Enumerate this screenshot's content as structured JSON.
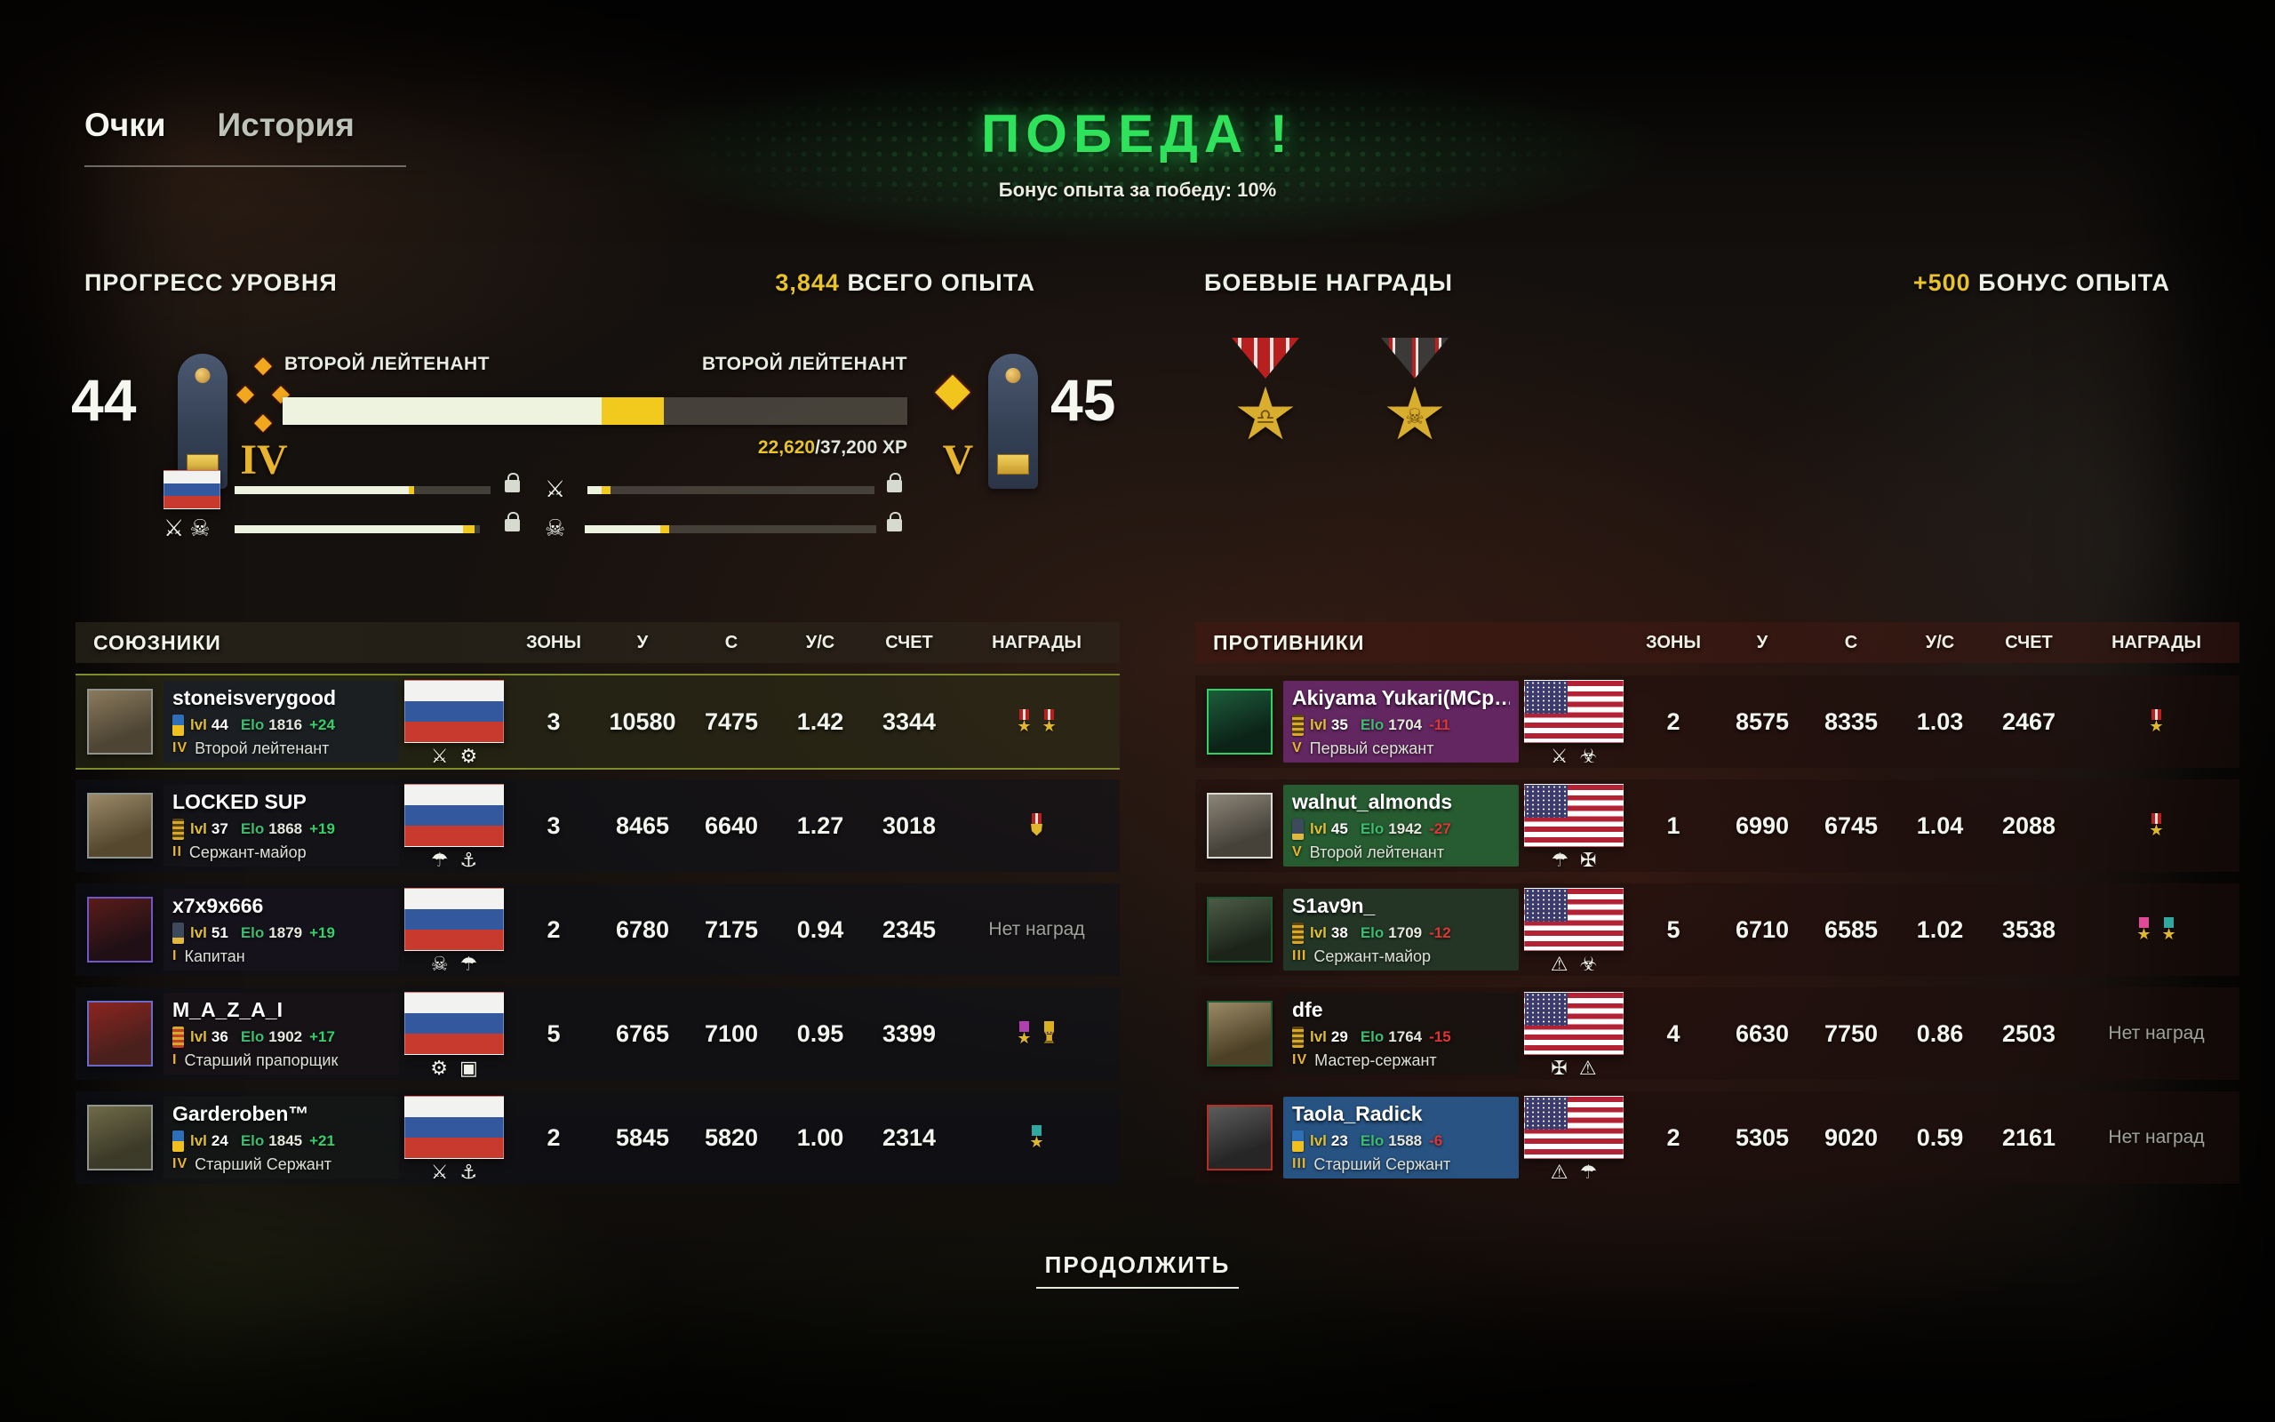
{
  "tabs": {
    "points": "Очки",
    "history": "История"
  },
  "victory": {
    "title": "ПОБЕДА !",
    "subtitle": "Бонус опыта за победу: 10%"
  },
  "progress": {
    "title": "ПРОГРЕСС УРОВНЯ",
    "total_xp_value": "3,844",
    "total_xp_label": "ВСЕГО ОПЫТА",
    "level_from": "44",
    "level_to": "45",
    "roman_from": "IV",
    "roman_to": "V",
    "rank_from": "ВТОРОЙ ЛЕЙТЕНАНТ",
    "rank_to": "ВТОРОЙ ЛЕЙТЕНАНТ",
    "xp_current": "22,620",
    "xp_total": "/37,200 XP",
    "bar_white_pct": 51,
    "bar_yellow_pct": 10,
    "sub_bars": [
      {
        "icon": "flag-ru",
        "white_pct": 68,
        "yellow_pct": 2,
        "locked": true
      },
      {
        "icon": "crossed-rifles",
        "white_pct": 5,
        "yellow_pct": 3,
        "locked": true
      },
      {
        "icon": "crossed-rifles-skull",
        "white_pct": 93,
        "yellow_pct": 5,
        "locked": true
      },
      {
        "icon": "skull",
        "white_pct": 26,
        "yellow_pct": 3,
        "locked": true
      }
    ]
  },
  "awards": {
    "title": "БОЕВЫЕ НАГРАДЫ",
    "bonus_value": "+500",
    "bonus_label": "БОНУС ОПЫТА",
    "medals": [
      {
        "name": "gold-star-scales",
        "ribbon": "red",
        "inner": "scales"
      },
      {
        "name": "gold-star-skull",
        "ribbon": "dark",
        "inner": "skull"
      }
    ]
  },
  "table": {
    "columns": [
      "ЗОНЫ",
      "У",
      "С",
      "У/С",
      "СЧЕТ",
      "НАГРАДЫ"
    ],
    "no_awards": "Нет наград"
  },
  "allies": {
    "title": "СОЮЗНИКИ",
    "rows": [
      {
        "name": "stoneisverygood",
        "lvl": "44",
        "elo": "1816",
        "delta": "+24",
        "roman": "IV",
        "rank": "Второй лейтенант",
        "flag": "ru",
        "badge": "ua",
        "unit_icons": [
          "crossed-rifles",
          "vehicle"
        ],
        "zones": "3",
        "u": "10580",
        "c": "7475",
        "uc": "1.42",
        "score": "3344",
        "awards": [
          "star-red",
          "star-red"
        ],
        "highlight": true,
        "banner": "rgba(22,30,48,0.55)",
        "avatar": "linear-gradient(160deg,#8a7a5c,#4d4434 70%)",
        "avatar_border": "#8f948e"
      },
      {
        "name": "LOCKED SUP",
        "lvl": "37",
        "elo": "1868",
        "delta": "+19",
        "roman": "II",
        "rank": "Сержант-майор",
        "flag": "ru",
        "badge": "sergeant",
        "unit_icons": [
          "parachute",
          "anchor"
        ],
        "zones": "3",
        "u": "8465",
        "c": "6640",
        "uc": "1.27",
        "score": "3018",
        "awards": [
          "medal-red"
        ],
        "highlight": false,
        "banner": "rgba(24,24,28,0.45)",
        "avatar": "linear-gradient(160deg,#9a8a68,#55482f 70%)",
        "avatar_border": "#8f948e"
      },
      {
        "name": "x7x9x666",
        "lvl": "51",
        "elo": "1879",
        "delta": "+19",
        "roman": "I",
        "rank": "Капитан",
        "flag": "ru",
        "badge": "officer",
        "unit_icons": [
          "skull",
          "parachute"
        ],
        "zones": "2",
        "u": "6780",
        "c": "7175",
        "uc": "0.94",
        "score": "2345",
        "awards": [],
        "highlight": false,
        "banner": "rgba(26,20,34,0.5)",
        "avatar": "linear-gradient(160deg,#5a1c18,#201016 70%)",
        "avatar_border": "#6f57c8"
      },
      {
        "name": "M_A_Z_A_I",
        "lvl": "36",
        "elo": "1902",
        "delta": "+17",
        "roman": "I",
        "rank": "Старший прапорщик",
        "flag": "ru",
        "badge": "stripes",
        "unit_icons": [
          "vehicle",
          "apc"
        ],
        "zones": "5",
        "u": "6765",
        "c": "7100",
        "uc": "0.95",
        "score": "3399",
        "awards": [
          "star-purple",
          "cup-gold"
        ],
        "highlight": false,
        "banner": "rgba(30,20,24,0.5)",
        "avatar": "linear-gradient(160deg,#8c2420,#4a201c 70%)",
        "avatar_border": "#6a6ac8"
      },
      {
        "name": "Garderoben™",
        "lvl": "24",
        "elo": "1845",
        "delta": "+21",
        "roman": "IV",
        "rank": "Старший Сержант",
        "flag": "ru",
        "badge": "ua",
        "unit_icons": [
          "crossed-rifles",
          "anchor"
        ],
        "zones": "2",
        "u": "5845",
        "c": "5820",
        "uc": "1.00",
        "score": "2314",
        "awards": [
          "star-teal"
        ],
        "highlight": false,
        "banner": "rgba(24,28,24,0.45)",
        "avatar": "linear-gradient(160deg,#6e6a48,#3c3a28 70%)",
        "avatar_border": "#8f948e"
      }
    ]
  },
  "opponents": {
    "title": "ПРОТИВНИКИ",
    "rows": [
      {
        "name": "Akiyama Yukari(MCp…",
        "lvl": "35",
        "elo": "1704",
        "delta": "-11",
        "roman": "V",
        "rank": "Первый сержант",
        "flag": "us",
        "badge": "sergeant",
        "unit_icons": [
          "crossed-swords",
          "frog"
        ],
        "zones": "2",
        "u": "8575",
        "c": "8335",
        "uc": "1.03",
        "score": "2467",
        "awards": [
          "star-red"
        ],
        "highlight": false,
        "banner": "rgba(115,44,118,0.8)",
        "avatar": "linear-gradient(160deg,#1d5c3a,#0c2418 70%)",
        "avatar_border": "#2bd468"
      },
      {
        "name": "walnut_almonds",
        "lvl": "45",
        "elo": "1942",
        "delta": "-27",
        "roman": "V",
        "rank": "Второй лейтенант",
        "flag": "us",
        "badge": "officer",
        "unit_icons": [
          "parachute",
          "usmc"
        ],
        "zones": "1",
        "u": "6990",
        "c": "6745",
        "uc": "1.04",
        "score": "2088",
        "awards": [
          "star-red"
        ],
        "highlight": false,
        "banner": "rgba(40,110,58,0.8)",
        "avatar": "linear-gradient(160deg,#8c8578,#46423a 70%)",
        "avatar_border": "#d8dcd4"
      },
      {
        "name": "S1av9n_",
        "lvl": "38",
        "elo": "1709",
        "delta": "-12",
        "roman": "III",
        "rank": "Сержант-майор",
        "flag": "us",
        "badge": "sergeant",
        "unit_icons": [
          "warning-triangle",
          "frog"
        ],
        "zones": "5",
        "u": "6710",
        "c": "6585",
        "uc": "1.02",
        "score": "3538",
        "awards": [
          "star-pink",
          "star-teal"
        ],
        "highlight": false,
        "banner": "rgba(36,62,44,0.8)",
        "avatar": "linear-gradient(160deg,#4c5c46,#1c241a 70%)",
        "avatar_border": "#1d5c33"
      },
      {
        "name": "dfe",
        "lvl": "29",
        "elo": "1764",
        "delta": "-15",
        "roman": "IV",
        "rank": "Мастер-сержант",
        "flag": "us",
        "badge": "sergeant",
        "unit_icons": [
          "usmc",
          "warning-triangle"
        ],
        "zones": "4",
        "u": "6630",
        "c": "7750",
        "uc": "0.86",
        "score": "2503",
        "awards": [],
        "highlight": false,
        "banner": "rgba(18,20,18,0.55)",
        "avatar": "linear-gradient(160deg,#9a8a66,#4c4026 70%)",
        "avatar_border": "#1d5c33"
      },
      {
        "name": "Taola_Radick",
        "lvl": "23",
        "elo": "1588",
        "delta": "-6",
        "roman": "III",
        "rank": "Старший Сержант",
        "flag": "us",
        "badge": "ua",
        "unit_icons": [
          "warning-triangle",
          "parachute"
        ],
        "zones": "2",
        "u": "5305",
        "c": "9020",
        "uc": "0.59",
        "score": "2161",
        "awards": [],
        "highlight": false,
        "banner": "rgba(42,100,160,0.8)",
        "avatar": "linear-gradient(160deg,#5c5c5c,#262626 70%)",
        "avatar_border": "#b82c22"
      }
    ]
  },
  "continue_button": "ПРОДОЛЖИТЬ",
  "colors": {
    "accent_green": "#2fe25b",
    "accent_yellow": "#e8c32a",
    "elo_green": "#3dbb6e",
    "delta_red": "#e03535",
    "highlight_border": "#7e8c2e"
  }
}
